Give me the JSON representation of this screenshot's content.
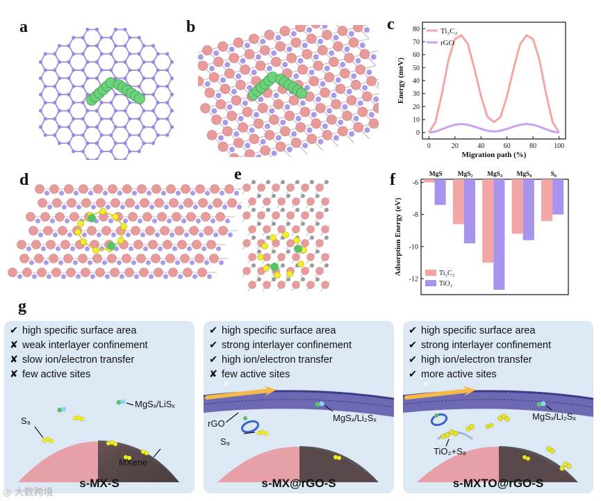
{
  "panel_labels": {
    "a": "a",
    "b": "b",
    "c": "c",
    "d": "d",
    "e": "e",
    "f": "f",
    "g": "g"
  },
  "colors": {
    "ti3c2": "#f3a6a6",
    "rgo": "#c9a3ef",
    "tio2": "#a894ec",
    "atom_pink": "#e79b9b",
    "atom_purple": "#a99be6",
    "panel_bg": "#dde8f5",
    "sphere": "#e8a0a8",
    "s8": "#f2ee2a",
    "mg": "#5bc06a"
  },
  "chart_data": [
    {
      "type": "line",
      "xlabel": "Migration path (%)",
      "ylabel": "Energy (meV)",
      "xlim": [
        -5,
        105
      ],
      "ylim": [
        -5,
        85
      ],
      "xticks": [
        0,
        20,
        40,
        60,
        80,
        100
      ],
      "yticks": [
        0,
        10,
        20,
        30,
        40,
        50,
        60,
        70,
        80
      ],
      "legend": "top-left",
      "series": [
        {
          "name": "Ti₃C₂",
          "color": "#f3a6a6",
          "x": [
            0,
            5,
            10,
            15,
            20,
            25,
            30,
            35,
            40,
            45,
            50,
            55,
            60,
            65,
            70,
            75,
            80,
            85,
            90,
            95,
            100
          ],
          "y": [
            0,
            8,
            30,
            56,
            72,
            75,
            68,
            49,
            28,
            12,
            8,
            12,
            28,
            49,
            68,
            75,
            72,
            56,
            30,
            8,
            0
          ]
        },
        {
          "name": "rGO",
          "color": "#c9a3ef",
          "x": [
            0,
            5,
            10,
            15,
            20,
            25,
            30,
            35,
            40,
            45,
            50,
            55,
            60,
            65,
            70,
            75,
            80,
            85,
            90,
            95,
            100
          ],
          "y": [
            0,
            0.7,
            2.5,
            4.5,
            6,
            6.5,
            6,
            4.5,
            2.8,
            1.3,
            0.8,
            1.3,
            2.8,
            4.5,
            6,
            6.5,
            6,
            4.5,
            2.5,
            0.7,
            0
          ]
        }
      ]
    },
    {
      "type": "bar",
      "categories": [
        "MgS",
        "MgS₂",
        "MgS₄",
        "MgS₈",
        "S₈"
      ],
      "ylabel": "Adsorption Energy (eV)",
      "ylim": [
        -13,
        -5.8
      ],
      "yticks": [
        -6,
        -8,
        -10,
        -12
      ],
      "legend": "bottom-left",
      "series": [
        {
          "name": "Ti₃C₂",
          "color": "#f3a6a6",
          "values": [
            -6.0,
            -8.6,
            -11.0,
            -9.2,
            -8.4
          ]
        },
        {
          "name": "TiO₂",
          "color": "#a894ec",
          "values": [
            -7.4,
            -9.8,
            -12.7,
            -9.6,
            -8.0
          ]
        }
      ]
    }
  ],
  "scheme": {
    "panels": [
      {
        "name": "s-MX-S",
        "bullets": [
          {
            "mark": "✔",
            "text": "high specific surface area"
          },
          {
            "mark": "✘",
            "text": "weak interlayer confinement"
          },
          {
            "mark": "✘",
            "text": "slow ion/electron transfer"
          },
          {
            "mark": "✘",
            "text": "few active sites"
          }
        ],
        "annotations": {
          "species": "MgSₓ/LiSₓ",
          "s8": "S₈",
          "host": "MXene"
        }
      },
      {
        "name": "s-MX@rGO-S",
        "bullets": [
          {
            "mark": "✔",
            "text": "high specific surface area"
          },
          {
            "mark": "✔",
            "text": "strong interlayer confinement"
          },
          {
            "mark": "✔",
            "text": "high ion/electron transfer"
          },
          {
            "mark": "✘",
            "text": "few active sites"
          }
        ],
        "annotations": {
          "electron": "e⁻",
          "rgo": "rGO",
          "species": "MgSₓ/Li₂Sₓ",
          "s8": "S₈"
        }
      },
      {
        "name": "s-MXTO@rGO-S",
        "bullets": [
          {
            "mark": "✔",
            "text": "high specific surface area"
          },
          {
            "mark": "✔",
            "text": "strong interlayer confinement"
          },
          {
            "mark": "✔",
            "text": "high ion/electron transfer"
          },
          {
            "mark": "✔",
            "text": "more active sites"
          }
        ],
        "annotations": {
          "electron": "e⁻",
          "species": "MgSₓ/Li₂Sₓ",
          "tio2": "TiO₂+S₈"
        }
      }
    ]
  },
  "watermark": "大数跨境"
}
